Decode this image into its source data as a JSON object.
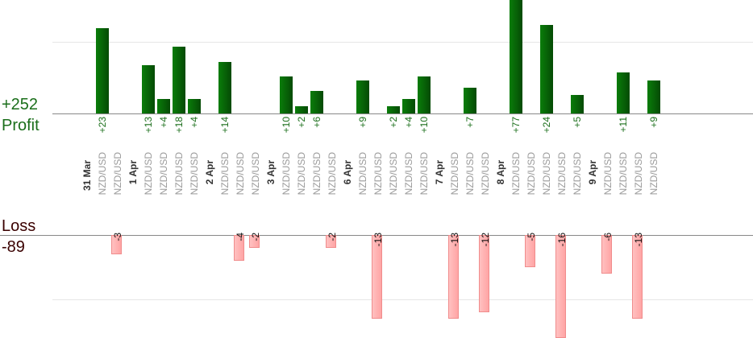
{
  "summary": {
    "profit_value": "+252",
    "profit_label": "Profit",
    "loss_label": "Loss",
    "loss_value": "-89"
  },
  "colors": {
    "profit_bar": "#0b6a0b",
    "profit_text": "#1a6e1a",
    "loss_bar": "#ffb3b3",
    "loss_border": "#f08c8c",
    "loss_text": "#3a0000",
    "date_text": "#333333",
    "pair_text": "#9a9a9a",
    "grid": "#e6e6e6",
    "axis": "#888888"
  },
  "chart_data": {
    "type": "bar",
    "slots": [
      {
        "date": "31 Mar"
      },
      {
        "pair": "NZD/USD",
        "profit": 23
      },
      {
        "pair": "NZD/USD",
        "loss": -3
      },
      {
        "date": "1 Apr"
      },
      {
        "pair": "NZD/USD",
        "profit": 13
      },
      {
        "pair": "NZD/USD",
        "profit": 4
      },
      {
        "pair": "NZD/USD",
        "profit": 18
      },
      {
        "pair": "NZD/USD",
        "profit": 4
      },
      {
        "date": "2 Apr"
      },
      {
        "pair": "NZD/USD",
        "profit": 14
      },
      {
        "pair": "NZD/USD",
        "loss": -4
      },
      {
        "pair": "NZD/USD",
        "loss": -2
      },
      {
        "date": "3 Apr"
      },
      {
        "pair": "NZD/USD",
        "profit": 10
      },
      {
        "pair": "NZD/USD",
        "profit": 2
      },
      {
        "pair": "NZD/USD",
        "profit": 6
      },
      {
        "pair": "NZD/USD",
        "loss": -2
      },
      {
        "date": "6 Apr"
      },
      {
        "pair": "NZD/USD",
        "profit": 9
      },
      {
        "pair": "NZD/USD",
        "loss": -13
      },
      {
        "pair": "NZD/USD",
        "profit": 2
      },
      {
        "pair": "NZD/USD",
        "profit": 4
      },
      {
        "pair": "NZD/USD",
        "profit": 10
      },
      {
        "date": "7 Apr"
      },
      {
        "pair": "NZD/USD",
        "loss": -13
      },
      {
        "pair": "NZD/USD",
        "profit": 7
      },
      {
        "pair": "NZD/USD",
        "loss": -12
      },
      {
        "date": "8 Apr"
      },
      {
        "pair": "NZD/USD",
        "profit": 77
      },
      {
        "pair": "NZD/USD",
        "loss": -5
      },
      {
        "pair": "NZD/USD",
        "profit": 24
      },
      {
        "pair": "NZD/USD",
        "loss": -16
      },
      {
        "pair": "NZD/USD",
        "profit": 5
      },
      {
        "date": "9 Apr"
      },
      {
        "pair": "NZD/USD",
        "loss": -6
      },
      {
        "pair": "NZD/USD",
        "profit": 11
      },
      {
        "pair": "NZD/USD",
        "loss": -13
      },
      {
        "pair": "NZD/USD",
        "profit": 9
      }
    ]
  }
}
